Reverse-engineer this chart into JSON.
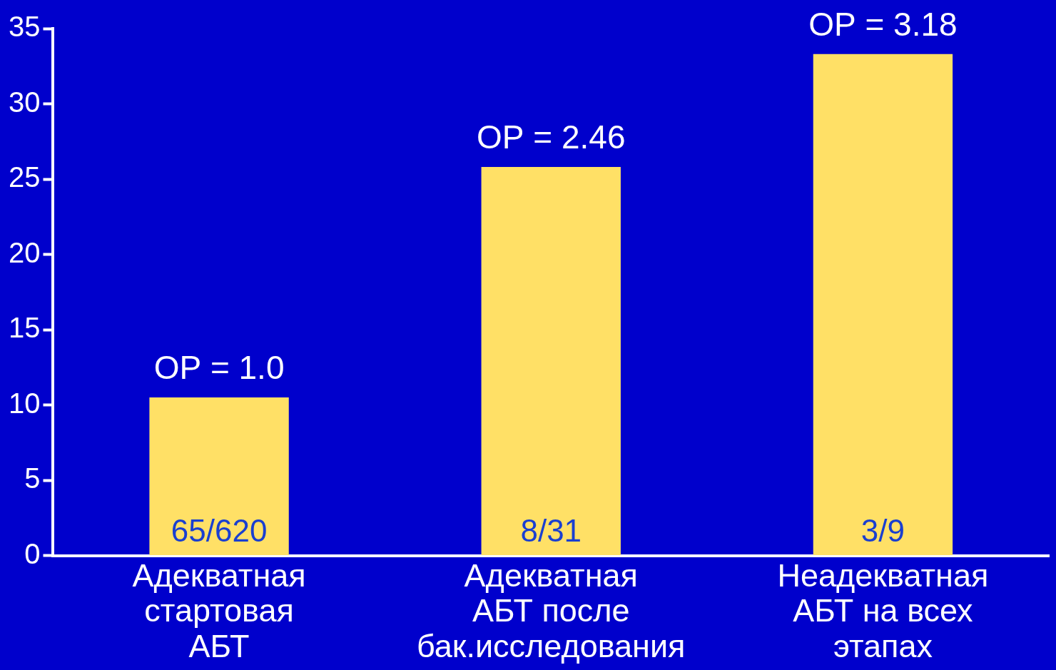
{
  "chart_data": {
    "type": "bar",
    "categories": [
      "Адекватная\nстартовая\nАБТ",
      "Адекватная\nАБТ после\nбак.исследования",
      "Неадекватная\nАБТ на всех\nэтапах"
    ],
    "values": [
      10.5,
      25.8,
      33.3
    ],
    "color": "#ffe066",
    "ylim": [
      0,
      35
    ],
    "yticks": [
      0,
      5,
      10,
      15,
      20,
      25,
      30,
      35
    ],
    "grid": false,
    "legend": false,
    "annotations": [
      {
        "text": "ОР = 1.0",
        "x": "Адекватная\nстартовая\nАБТ",
        "y": 10.5
      },
      {
        "text": "ОР = 2.46",
        "x": "Адекватная\nАБТ после\nбак.исследования",
        "y": 25.8
      },
      {
        "text": "ОР = 3.18",
        "x": "Неадекватная\nАБТ на всех\nэтапах",
        "y": 33.3
      },
      {
        "text": "65/620",
        "x": "Адекватная\nстартовая\nАБТ",
        "y": 0
      },
      {
        "text": "8/31",
        "x": "Адекватная\nАБТ после\nбак.исследования",
        "y": 0
      },
      {
        "text": "3/9",
        "x": "Неадекватная\nАБТ на всех\nэтапах",
        "y": 0
      }
    ]
  }
}
